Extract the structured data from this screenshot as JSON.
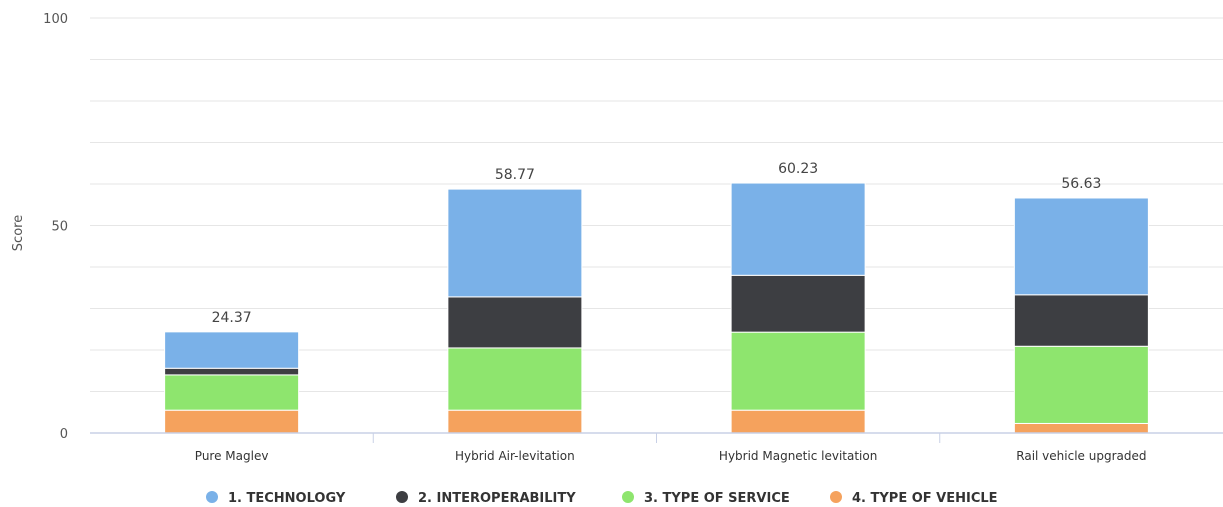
{
  "chart_data": {
    "type": "bar",
    "stacked": true,
    "categories": [
      "Pure Maglev",
      "Hybrid Air-levitation",
      "Hybrid Magnetic levitation",
      "Rail vehicle upgraded"
    ],
    "series": [
      {
        "name": "4. TYPE OF VEHICLE",
        "color": "#f5a25d",
        "values": [
          5.5,
          5.5,
          5.5,
          2.3
        ]
      },
      {
        "name": "3. TYPE OF SERVICE",
        "color": "#8ee56e",
        "values": [
          8.5,
          15.0,
          18.8,
          18.6
        ]
      },
      {
        "name": "2. INTEROPERABILITY",
        "color": "#3d3e42",
        "values": [
          1.6,
          12.3,
          13.7,
          12.4
        ]
      },
      {
        "name": "1. TECHNOLOGY",
        "color": "#7ab1e8",
        "values": [
          8.77,
          25.97,
          22.23,
          23.33
        ]
      }
    ],
    "legend_order": [
      "1. TECHNOLOGY",
      "2. INTEROPERABILITY",
      "3. TYPE OF SERVICE",
      "4. TYPE OF VEHICLE"
    ],
    "totals": [
      "24.37",
      "58.77",
      "60.23",
      "56.63"
    ],
    "ylabel": "Score",
    "xlabel": "",
    "ylim": [
      0,
      100
    ],
    "yticks": [
      0,
      50,
      100
    ],
    "grid": true,
    "legend_position": "bottom"
  }
}
